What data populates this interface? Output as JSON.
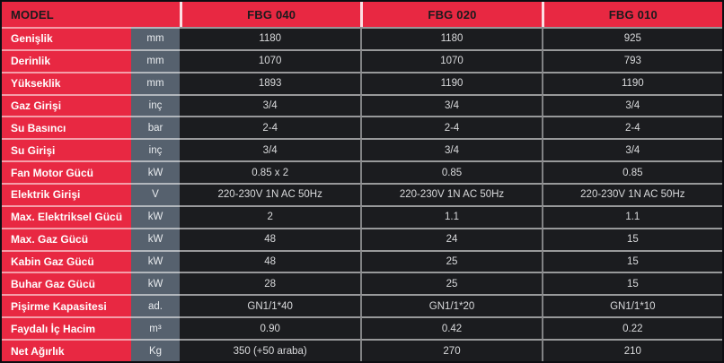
{
  "header": {
    "model_label": "MODEL",
    "columns": [
      "FBG 040",
      "FBG 020",
      "FBG 010"
    ]
  },
  "colors": {
    "accent_red": "#e82842",
    "unit_cell_bg": "#56616e",
    "value_cell_bg": "#1b1c1f",
    "header_text": "#1b1b1d",
    "label_text": "#ffffff",
    "value_text": "#d9dadc",
    "separator": "rgba(255,255,255,0.55)"
  },
  "rows": [
    {
      "label": "Genişlik",
      "unit": "mm",
      "values": [
        "1180",
        "1180",
        "925"
      ]
    },
    {
      "label": "Derinlik",
      "unit": "mm",
      "values": [
        "1070",
        "1070",
        "793"
      ]
    },
    {
      "label": "Yükseklik",
      "unit": "mm",
      "values": [
        "1893",
        "1190",
        "1190"
      ]
    },
    {
      "label": "Gaz Girişi",
      "unit": "inç",
      "values": [
        "3/4",
        "3/4",
        "3/4"
      ]
    },
    {
      "label": "Su Basıncı",
      "unit": "bar",
      "values": [
        "2-4",
        "2-4",
        "2-4"
      ]
    },
    {
      "label": "Su Girişi",
      "unit": "inç",
      "values": [
        "3/4",
        "3/4",
        "3/4"
      ]
    },
    {
      "label": "Fan Motor Gücü",
      "unit": "kW",
      "values": [
        "0.85 x 2",
        "0.85",
        "0.85"
      ]
    },
    {
      "label": "Elektrik Girişi",
      "unit": "V",
      "values": [
        "220-230V 1N AC 50Hz",
        "220-230V 1N AC 50Hz",
        "220-230V 1N AC 50Hz"
      ]
    },
    {
      "label": "Max. Elektriksel Gücü",
      "unit": "kW",
      "values": [
        "2",
        "1.1",
        "1.1"
      ]
    },
    {
      "label": "Max. Gaz Gücü",
      "unit": "kW",
      "values": [
        "48",
        "24",
        "15"
      ]
    },
    {
      "label": "Kabin Gaz Gücü",
      "unit": "kW",
      "values": [
        "48",
        "25",
        "15"
      ]
    },
    {
      "label": "Buhar Gaz Gücü",
      "unit": "kW",
      "values": [
        "28",
        "25",
        "15"
      ]
    },
    {
      "label": "Pişirme Kapasitesi",
      "unit": "ad.",
      "values": [
        "GN1/1*40",
        "GN1/1*20",
        "GN1/1*10"
      ]
    },
    {
      "label": "Faydalı İç Hacim",
      "unit": "m³",
      "values": [
        "0.90",
        "0.42",
        "0.22"
      ]
    },
    {
      "label": "Net Ağırlık",
      "unit": "Kg",
      "values": [
        "350 (+50 araba)",
        "270",
        "210"
      ]
    }
  ]
}
